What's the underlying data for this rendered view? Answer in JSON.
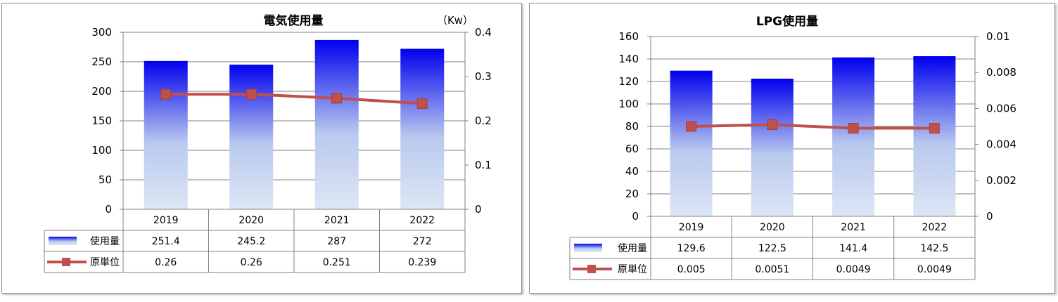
{
  "chart_data": [
    {
      "type": "bar+line",
      "title": "電気使用量",
      "unit_right": "（Kw）",
      "categories": [
        "2019",
        "2020",
        "2021",
        "2022"
      ],
      "series": [
        {
          "name": "使用量",
          "type": "bar",
          "axis": "left",
          "values": [
            251.4,
            245.2,
            287,
            272
          ],
          "labels": [
            "251.4",
            "245.2",
            "287",
            "272"
          ]
        },
        {
          "name": "原単位",
          "type": "line",
          "axis": "right",
          "values": [
            0.26,
            0.26,
            0.251,
            0.239
          ],
          "labels": [
            "0.26",
            "0.26",
            "0.251",
            "0.239"
          ]
        }
      ],
      "ylim_left": [
        0,
        300
      ],
      "ylim_right": [
        0,
        0.4
      ],
      "yticks_left": [
        "0",
        "50",
        "100",
        "150",
        "200",
        "250",
        "300"
      ],
      "yticks_right": [
        "0",
        "0.1",
        "0.2",
        "0.3",
        "0.4"
      ],
      "grid": true,
      "legend": "data-table"
    },
    {
      "type": "bar+line",
      "title": "LPG使用量",
      "unit_right": "",
      "categories": [
        "2019",
        "2020",
        "2021",
        "2022"
      ],
      "series": [
        {
          "name": "使用量",
          "type": "bar",
          "axis": "left",
          "values": [
            129.6,
            122.5,
            141.4,
            142.5
          ],
          "labels": [
            "129.6",
            "122.5",
            "141.4",
            "142.5"
          ]
        },
        {
          "name": "原単位",
          "type": "line",
          "axis": "right",
          "values": [
            0.005,
            0.0051,
            0.0049,
            0.0049
          ],
          "labels": [
            "0.005",
            "0.0051",
            "0.0049",
            "0.0049"
          ]
        }
      ],
      "ylim_left": [
        0,
        160
      ],
      "ylim_right": [
        0,
        0.01
      ],
      "yticks_left": [
        "0",
        "20",
        "40",
        "60",
        "80",
        "100",
        "120",
        "140",
        "160"
      ],
      "yticks_right": [
        "0",
        "0.002",
        "0.004",
        "0.006",
        "0.008",
        "0.01"
      ],
      "grid": true,
      "legend": "data-table"
    }
  ],
  "colors": {
    "bar_top": "#0000ee",
    "bar_bottom": "#dde6f5",
    "line": "#c0504d",
    "grid": "#808080"
  }
}
